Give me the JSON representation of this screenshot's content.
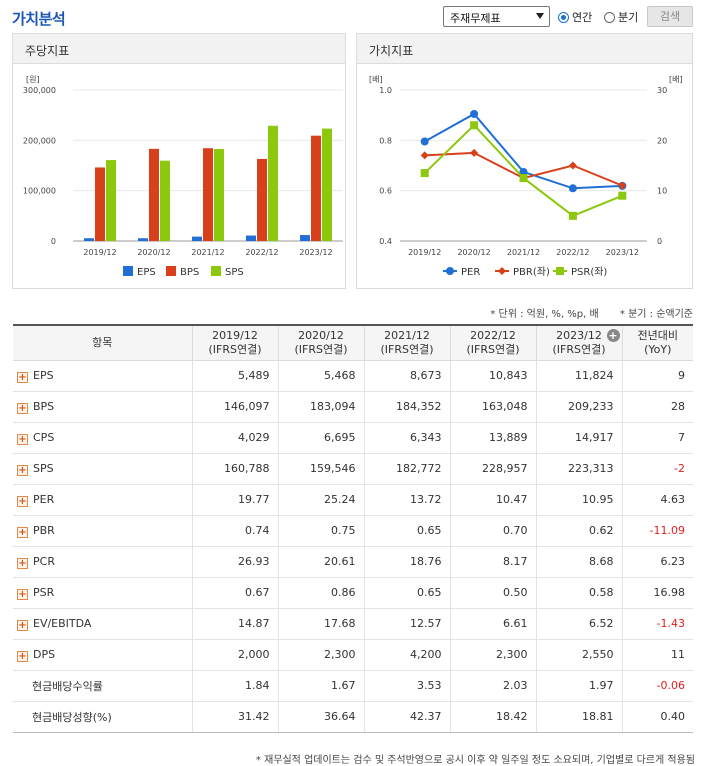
{
  "header": {
    "title": "가치분석",
    "select_value": "주재무제표",
    "radio_annual": "연간",
    "radio_quarter": "분기",
    "search_button": "검색"
  },
  "left_panel": {
    "title": "주당지표"
  },
  "right_panel": {
    "title": "가치지표"
  },
  "chart_data": [
    {
      "type": "bar",
      "title": "주당지표",
      "ylabel": "[원]",
      "ylim": [
        0,
        300000
      ],
      "yticks": [
        "0",
        "100,000",
        "200,000",
        "300,000"
      ],
      "categories": [
        "2019/12",
        "2020/12",
        "2021/12",
        "2022/12",
        "2023/12"
      ],
      "series": [
        {
          "name": "EPS",
          "color": "#1f6fd6",
          "values": [
            5489,
            5468,
            8673,
            10843,
            11824
          ]
        },
        {
          "name": "BPS",
          "color": "#d8401b",
          "values": [
            146097,
            183094,
            184352,
            163048,
            209233
          ]
        },
        {
          "name": "SPS",
          "color": "#8cc90e",
          "values": [
            160788,
            159546,
            182772,
            228957,
            223313
          ]
        }
      ],
      "legend": "bottom"
    },
    {
      "type": "line",
      "title": "가치지표",
      "ylabel_left": "[배]",
      "ylabel_right": "[배]",
      "ylim_left": [
        0.4,
        1.0
      ],
      "ylim_right": [
        0,
        30
      ],
      "yticks_left": [
        "0.4",
        "0.6",
        "0.8",
        "1.0"
      ],
      "yticks_right": [
        "0",
        "10",
        "20",
        "30"
      ],
      "categories": [
        "2019/12",
        "2020/12",
        "2021/12",
        "2022/12",
        "2023/12"
      ],
      "series": [
        {
          "name": "PER",
          "axis": "right",
          "marker": "circle",
          "color": "#1f6fd6",
          "values": [
            19.77,
            25.24,
            13.72,
            10.47,
            10.95
          ]
        },
        {
          "name": "PBR(좌)",
          "axis": "left",
          "marker": "diamond",
          "color": "#d8401b",
          "values": [
            0.74,
            0.75,
            0.65,
            0.7,
            0.62
          ]
        },
        {
          "name": "PSR(좌)",
          "axis": "left",
          "marker": "square",
          "color": "#8cc90e",
          "values": [
            0.67,
            0.86,
            0.65,
            0.5,
            0.58
          ]
        }
      ],
      "legend": "bottom"
    }
  ],
  "notes": {
    "unit": "* 단위 : 억원, %, %p, 배",
    "quarter": "* 분기 : 순액기준"
  },
  "table": {
    "headers": [
      {
        "l1": "항목",
        "l2": ""
      },
      {
        "l1": "2019/12",
        "l2": "(IFRS연결)"
      },
      {
        "l1": "2020/12",
        "l2": "(IFRS연결)"
      },
      {
        "l1": "2021/12",
        "l2": "(IFRS연결)"
      },
      {
        "l1": "2022/12",
        "l2": "(IFRS연결)"
      },
      {
        "l1": "2023/12",
        "l2": "(IFRS연결)"
      },
      {
        "l1": "전년대비",
        "l2": "(YoY)"
      }
    ],
    "rows": [
      {
        "label": "EPS",
        "expand": true,
        "values": [
          "5,489",
          "5,468",
          "8,673",
          "10,843",
          "11,824"
        ],
        "yoy": "9"
      },
      {
        "label": "BPS",
        "expand": true,
        "values": [
          "146,097",
          "183,094",
          "184,352",
          "163,048",
          "209,233"
        ],
        "yoy": "28"
      },
      {
        "label": "CPS",
        "expand": true,
        "values": [
          "4,029",
          "6,695",
          "6,343",
          "13,889",
          "14,917"
        ],
        "yoy": "7"
      },
      {
        "label": "SPS",
        "expand": true,
        "values": [
          "160,788",
          "159,546",
          "182,772",
          "228,957",
          "223,313"
        ],
        "yoy": "-2"
      },
      {
        "label": "PER",
        "expand": true,
        "values": [
          "19.77",
          "25.24",
          "13.72",
          "10.47",
          "10.95"
        ],
        "yoy": "4.63"
      },
      {
        "label": "PBR",
        "expand": true,
        "values": [
          "0.74",
          "0.75",
          "0.65",
          "0.70",
          "0.62"
        ],
        "yoy": "-11.09"
      },
      {
        "label": "PCR",
        "expand": true,
        "values": [
          "26.93",
          "20.61",
          "18.76",
          "8.17",
          "8.68"
        ],
        "yoy": "6.23"
      },
      {
        "label": "PSR",
        "expand": true,
        "values": [
          "0.67",
          "0.86",
          "0.65",
          "0.50",
          "0.58"
        ],
        "yoy": "16.98"
      },
      {
        "label": "EV/EBITDA",
        "expand": true,
        "values": [
          "14.87",
          "17.68",
          "12.57",
          "6.61",
          "6.52"
        ],
        "yoy": "-1.43"
      },
      {
        "label": "DPS",
        "expand": true,
        "values": [
          "2,000",
          "2,300",
          "4,200",
          "2,300",
          "2,550"
        ],
        "yoy": "11"
      },
      {
        "label": "현금배당수익률",
        "expand": false,
        "values": [
          "1.84",
          "1.67",
          "3.53",
          "2.03",
          "1.97"
        ],
        "yoy": "-0.06"
      },
      {
        "label": "현금배당성향(%)",
        "expand": false,
        "values": [
          "31.42",
          "36.64",
          "42.37",
          "18.42",
          "18.81"
        ],
        "yoy": "0.40"
      }
    ]
  },
  "footnote": "* 재무실적 업데이트는 검수 및 주석반영으로 공시 이후 약 일주일 정도 소요되며, 기업별로 다르게 적용됨"
}
